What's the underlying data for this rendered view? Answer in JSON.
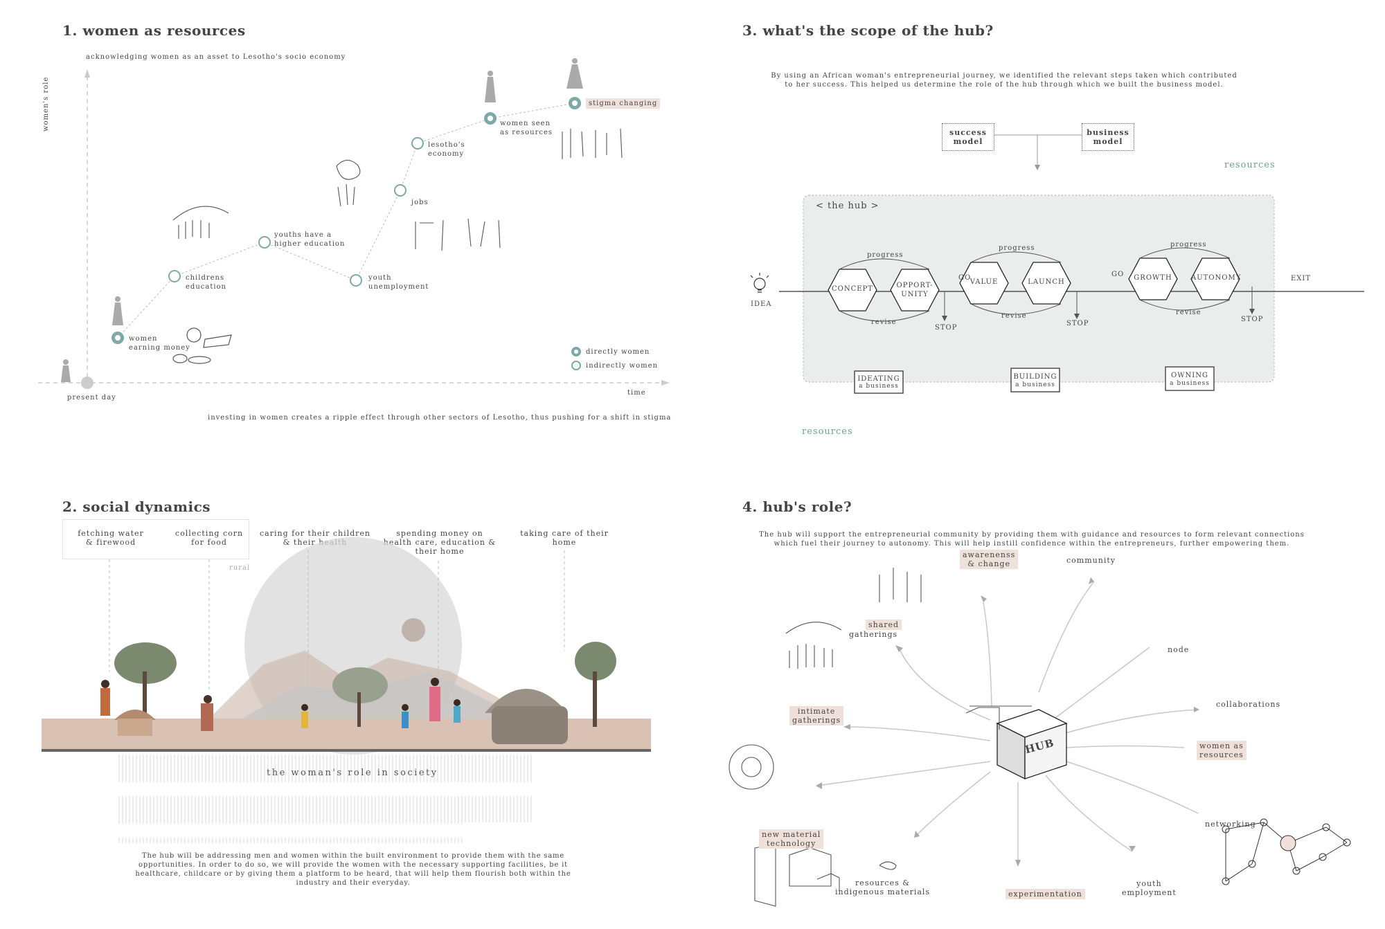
{
  "panel1": {
    "title": "1. women as resources",
    "subtitle": "acknowledging women as an asset to Lesotho's socio economy",
    "y_axis_label": "women's role",
    "x_axis_label": "time",
    "origin_label": "present day",
    "footer": "investing in women creates a ripple effect through other sectors of Lesotho, thus pushing for a shift in stigma",
    "legend": {
      "direct": "directly women",
      "indirect": "indirectly women"
    },
    "nodes": [
      {
        "label": "women\nearning money",
        "type": "direct"
      },
      {
        "label": "childrens\neducation",
        "type": "indirect"
      },
      {
        "label": "youths have a\nhigher education",
        "type": "indirect"
      },
      {
        "label": "youth\nunemployment",
        "type": "indirect"
      },
      {
        "label": "jobs",
        "type": "indirect"
      },
      {
        "label": "lesotho's\neconomy",
        "type": "indirect"
      },
      {
        "label": "women seen\nas resources",
        "type": "direct"
      },
      {
        "label": "stigma changing",
        "type": "direct"
      }
    ]
  },
  "panel2": {
    "title": "2. social dynamics",
    "labels": [
      "fetching water\n& firewood",
      "collecting corn\nfor food",
      "caring for their children\n& their health",
      "spending money on\nhealth care, education &\ntheir home",
      "taking care of their\nhome"
    ],
    "rural": "rural",
    "circle_text": "the woman's role in society",
    "paragraph": "The hub will be addressing men and women within the built environment to provide them with the same opportunities. In order to do so, we will provide the women with the necessary supporting facilities, be it healthcare, childcare or by giving them a platform to be heard, that will help them flourish both within the industry and their everyday."
  },
  "panel3": {
    "title": "3. what's the scope of the hub?",
    "intro": "By using an African woman's entrepreneurial journey, we identified the relevant steps taken which contributed\nto her success.  This helped us determine the role of the hub through which we built the business model.",
    "success_model": "success\nmodel",
    "business_model": "business\nmodel",
    "resources_top": "resources",
    "resources_bottom": "resources",
    "hub_label": "< the hub >",
    "idea": "IDEA",
    "exit": "EXIT",
    "go": "GO",
    "stop": "STOP",
    "progress": "progress",
    "revise": "revise",
    "hexagons": [
      "CONCEPT",
      "OPPORT-\nUNITY",
      "VALUE",
      "LAUNCH",
      "GROWTH",
      "AUTONOMY"
    ],
    "phases": [
      {
        "main": "IDEATING",
        "sub": "a  business"
      },
      {
        "main": "BUILDING",
        "sub": "a  business"
      },
      {
        "main": "OWNING",
        "sub": "a  business"
      }
    ]
  },
  "panel4": {
    "title": "4. hub's role?",
    "intro": "The hub will support the entrepreneurial community by providing them with guidance and resources to  form relevant connections\nwhich fuel their journey to autonomy. This will help instill confidence within the entrepreneurs, further empowering them.",
    "hub": "HUB",
    "items": [
      {
        "text": "shared",
        "text2": "gatherings"
      },
      {
        "text": "awarenenss\n& change"
      },
      {
        "text": "community"
      },
      {
        "text": "node"
      },
      {
        "text": "collaborations"
      },
      {
        "text": "women as\nresources"
      },
      {
        "text": "networking"
      },
      {
        "text": "youth\nemployment"
      },
      {
        "text": "experimentation"
      },
      {
        "text": "resources &\nindigenous materials"
      },
      {
        "text": "new material\ntechnology"
      },
      {
        "text": "intimate\ngatherings"
      }
    ]
  },
  "colors": {
    "teal": "#7ea9aa",
    "highlight": "#efe1da",
    "ground": "#d9c2b3"
  }
}
